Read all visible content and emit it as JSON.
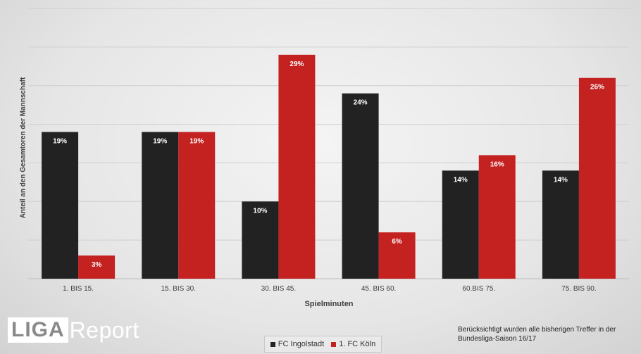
{
  "chart_data": {
    "type": "bar",
    "categories": [
      "1. BIS 15.",
      "15. BIS 30.",
      "30. BIS 45.",
      "45. BIS 60.",
      "60.BIS 75.",
      "75. BIS 90."
    ],
    "series": [
      {
        "name": "FC Ingolstadt",
        "values": [
          19,
          19,
          10,
          24,
          14,
          14
        ],
        "labels": [
          "19%",
          "19%",
          "10%",
          "24%",
          "14%",
          "14%"
        ],
        "color": "#222222"
      },
      {
        "name": "1. FC Köln",
        "values": [
          3,
          19,
          29,
          6,
          16,
          26
        ],
        "labels": [
          "3%",
          "19%",
          "29%",
          "6%",
          "16%",
          "26%"
        ],
        "color": "#c42121"
      }
    ],
    "xlabel": "Spielminuten",
    "ylabel": "Anteil an den Gesamtoren der Mannschaft",
    "ylim": [
      0,
      35
    ],
    "grid": true,
    "legend_position": "bottom"
  },
  "logo": {
    "box_text": "LIGA",
    "word_text": "Report"
  },
  "footnote": "Berücksichtigt wurden alle bisherigen Treffer in der Bundesliga-Saison 16/17"
}
